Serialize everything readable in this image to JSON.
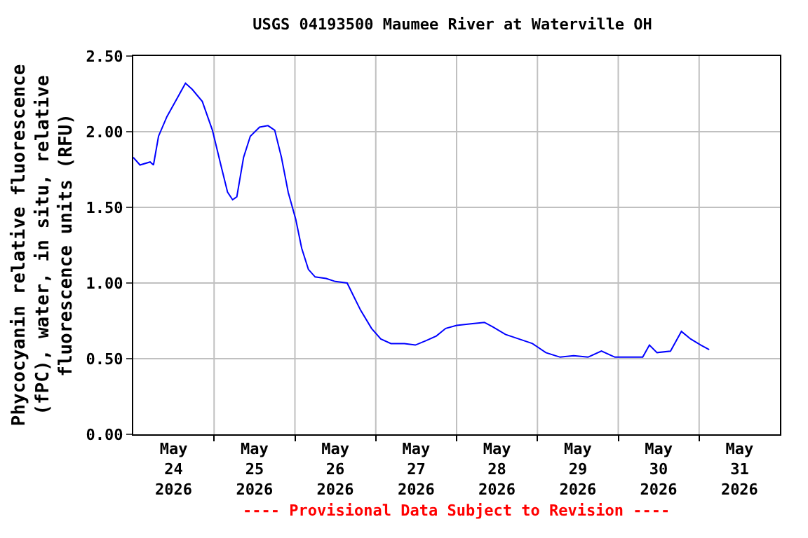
{
  "chart_data": {
    "type": "line",
    "title": "USGS 04193500 Maumee River at Waterville OH",
    "ylabel": "Phycocyanin relative fluorescence\n(fPC), water, in situ, relative\nfluorescence units (RFU)",
    "annotations": [
      "---- Provisional Data Subject to Revision ----"
    ],
    "x": [
      "2026-05-24T00:00",
      "2026-05-24T02:00",
      "2026-05-24T05:00",
      "2026-05-24T06:00",
      "2026-05-24T07:30",
      "2026-05-24T10:00",
      "2026-05-24T13:30",
      "2026-05-24T15:30",
      "2026-05-24T17:30",
      "2026-05-24T20:30",
      "2026-05-24T23:30",
      "2026-05-25T02:00",
      "2026-05-25T04:00",
      "2026-05-25T05:30",
      "2026-05-25T06:45",
      "2026-05-25T08:45",
      "2026-05-25T10:45",
      "2026-05-25T13:30",
      "2026-05-25T16:00",
      "2026-05-25T18:00",
      "2026-05-25T20:00",
      "2026-05-25T22:00",
      "2026-05-26T00:15",
      "2026-05-26T02:00",
      "2026-05-26T04:00",
      "2026-05-26T06:00",
      "2026-05-26T09:15",
      "2026-05-26T12:00",
      "2026-05-26T15:30",
      "2026-05-26T17:30",
      "2026-05-26T19:30",
      "2026-05-26T22:45",
      "2026-05-27T01:30",
      "2026-05-27T04:30",
      "2026-05-27T08:30",
      "2026-05-27T11:45",
      "2026-05-27T15:00",
      "2026-05-27T18:00",
      "2026-05-27T20:45",
      "2026-05-28T00:00",
      "2026-05-28T04:15",
      "2026-05-28T08:15",
      "2026-05-28T10:45",
      "2026-05-28T14:30",
      "2026-05-28T18:30",
      "2026-05-28T22:30",
      "2026-05-29T02:30",
      "2026-05-29T06:45",
      "2026-05-29T10:45",
      "2026-05-29T15:00",
      "2026-05-29T19:00",
      "2026-05-29T23:00",
      "2026-05-30T03:15",
      "2026-05-30T07:15",
      "2026-05-30T09:15",
      "2026-05-30T11:30",
      "2026-05-30T15:30",
      "2026-05-30T18:45",
      "2026-05-30T21:30",
      "2026-05-31T00:30",
      "2026-05-31T03:00"
    ],
    "series": [
      {
        "color": "#0000ff",
        "values": [
          1.83,
          1.78,
          1.8,
          1.78,
          1.97,
          2.1,
          2.24,
          2.32,
          2.28,
          2.2,
          2.01,
          1.78,
          1.6,
          1.55,
          1.57,
          1.83,
          1.97,
          2.03,
          2.04,
          2.01,
          1.83,
          1.6,
          1.42,
          1.23,
          1.09,
          1.04,
          1.03,
          1.01,
          1.0,
          0.91,
          0.82,
          0.7,
          0.63,
          0.6,
          0.6,
          0.59,
          0.62,
          0.65,
          0.7,
          0.72,
          0.73,
          0.74,
          0.71,
          0.66,
          0.63,
          0.6,
          0.54,
          0.51,
          0.52,
          0.51,
          0.55,
          0.51,
          0.51,
          0.51,
          0.59,
          0.54,
          0.55,
          0.68,
          0.63,
          0.59,
          0.56
        ]
      }
    ],
    "xlim": [
      "2026-05-24T00:00",
      "2026-06-01T00:00"
    ],
    "xticks": [
      {
        "value": "2026-05-24T12:00",
        "label": "May\n24\n2026"
      },
      {
        "value": "2026-05-25T12:00",
        "label": "May\n25\n2026"
      },
      {
        "value": "2026-05-26T12:00",
        "label": "May\n26\n2026"
      },
      {
        "value": "2026-05-27T12:00",
        "label": "May\n27\n2026"
      },
      {
        "value": "2026-05-28T12:00",
        "label": "May\n28\n2026"
      },
      {
        "value": "2026-05-29T12:00",
        "label": "May\n29\n2026"
      },
      {
        "value": "2026-05-30T12:00",
        "label": "May\n30\n2026"
      },
      {
        "value": "2026-05-31T12:00",
        "label": "May\n31\n2026"
      },
      {
        "value": "2026-05-25T00:00",
        "label": null
      },
      {
        "value": "2026-05-26T00:00",
        "label": null
      },
      {
        "value": "2026-05-27T00:00",
        "label": null
      },
      {
        "value": "2026-05-28T00:00",
        "label": null
      },
      {
        "value": "2026-05-29T00:00",
        "label": null
      },
      {
        "value": "2026-05-30T00:00",
        "label": null
      },
      {
        "value": "2026-05-31T00:00",
        "label": null
      }
    ],
    "ylim": [
      0,
      2.5
    ],
    "yticks": [
      {
        "value": 0,
        "label": "0.00"
      },
      {
        "value": 0.5,
        "label": "0.50"
      },
      {
        "value": 1,
        "label": "1.00"
      },
      {
        "value": 1.5,
        "label": "1.50"
      },
      {
        "value": 2,
        "label": "2.00"
      },
      {
        "value": 2.5,
        "label": "2.50"
      }
    ],
    "grid": true,
    "marker": "none",
    "line_style": "solid"
  }
}
